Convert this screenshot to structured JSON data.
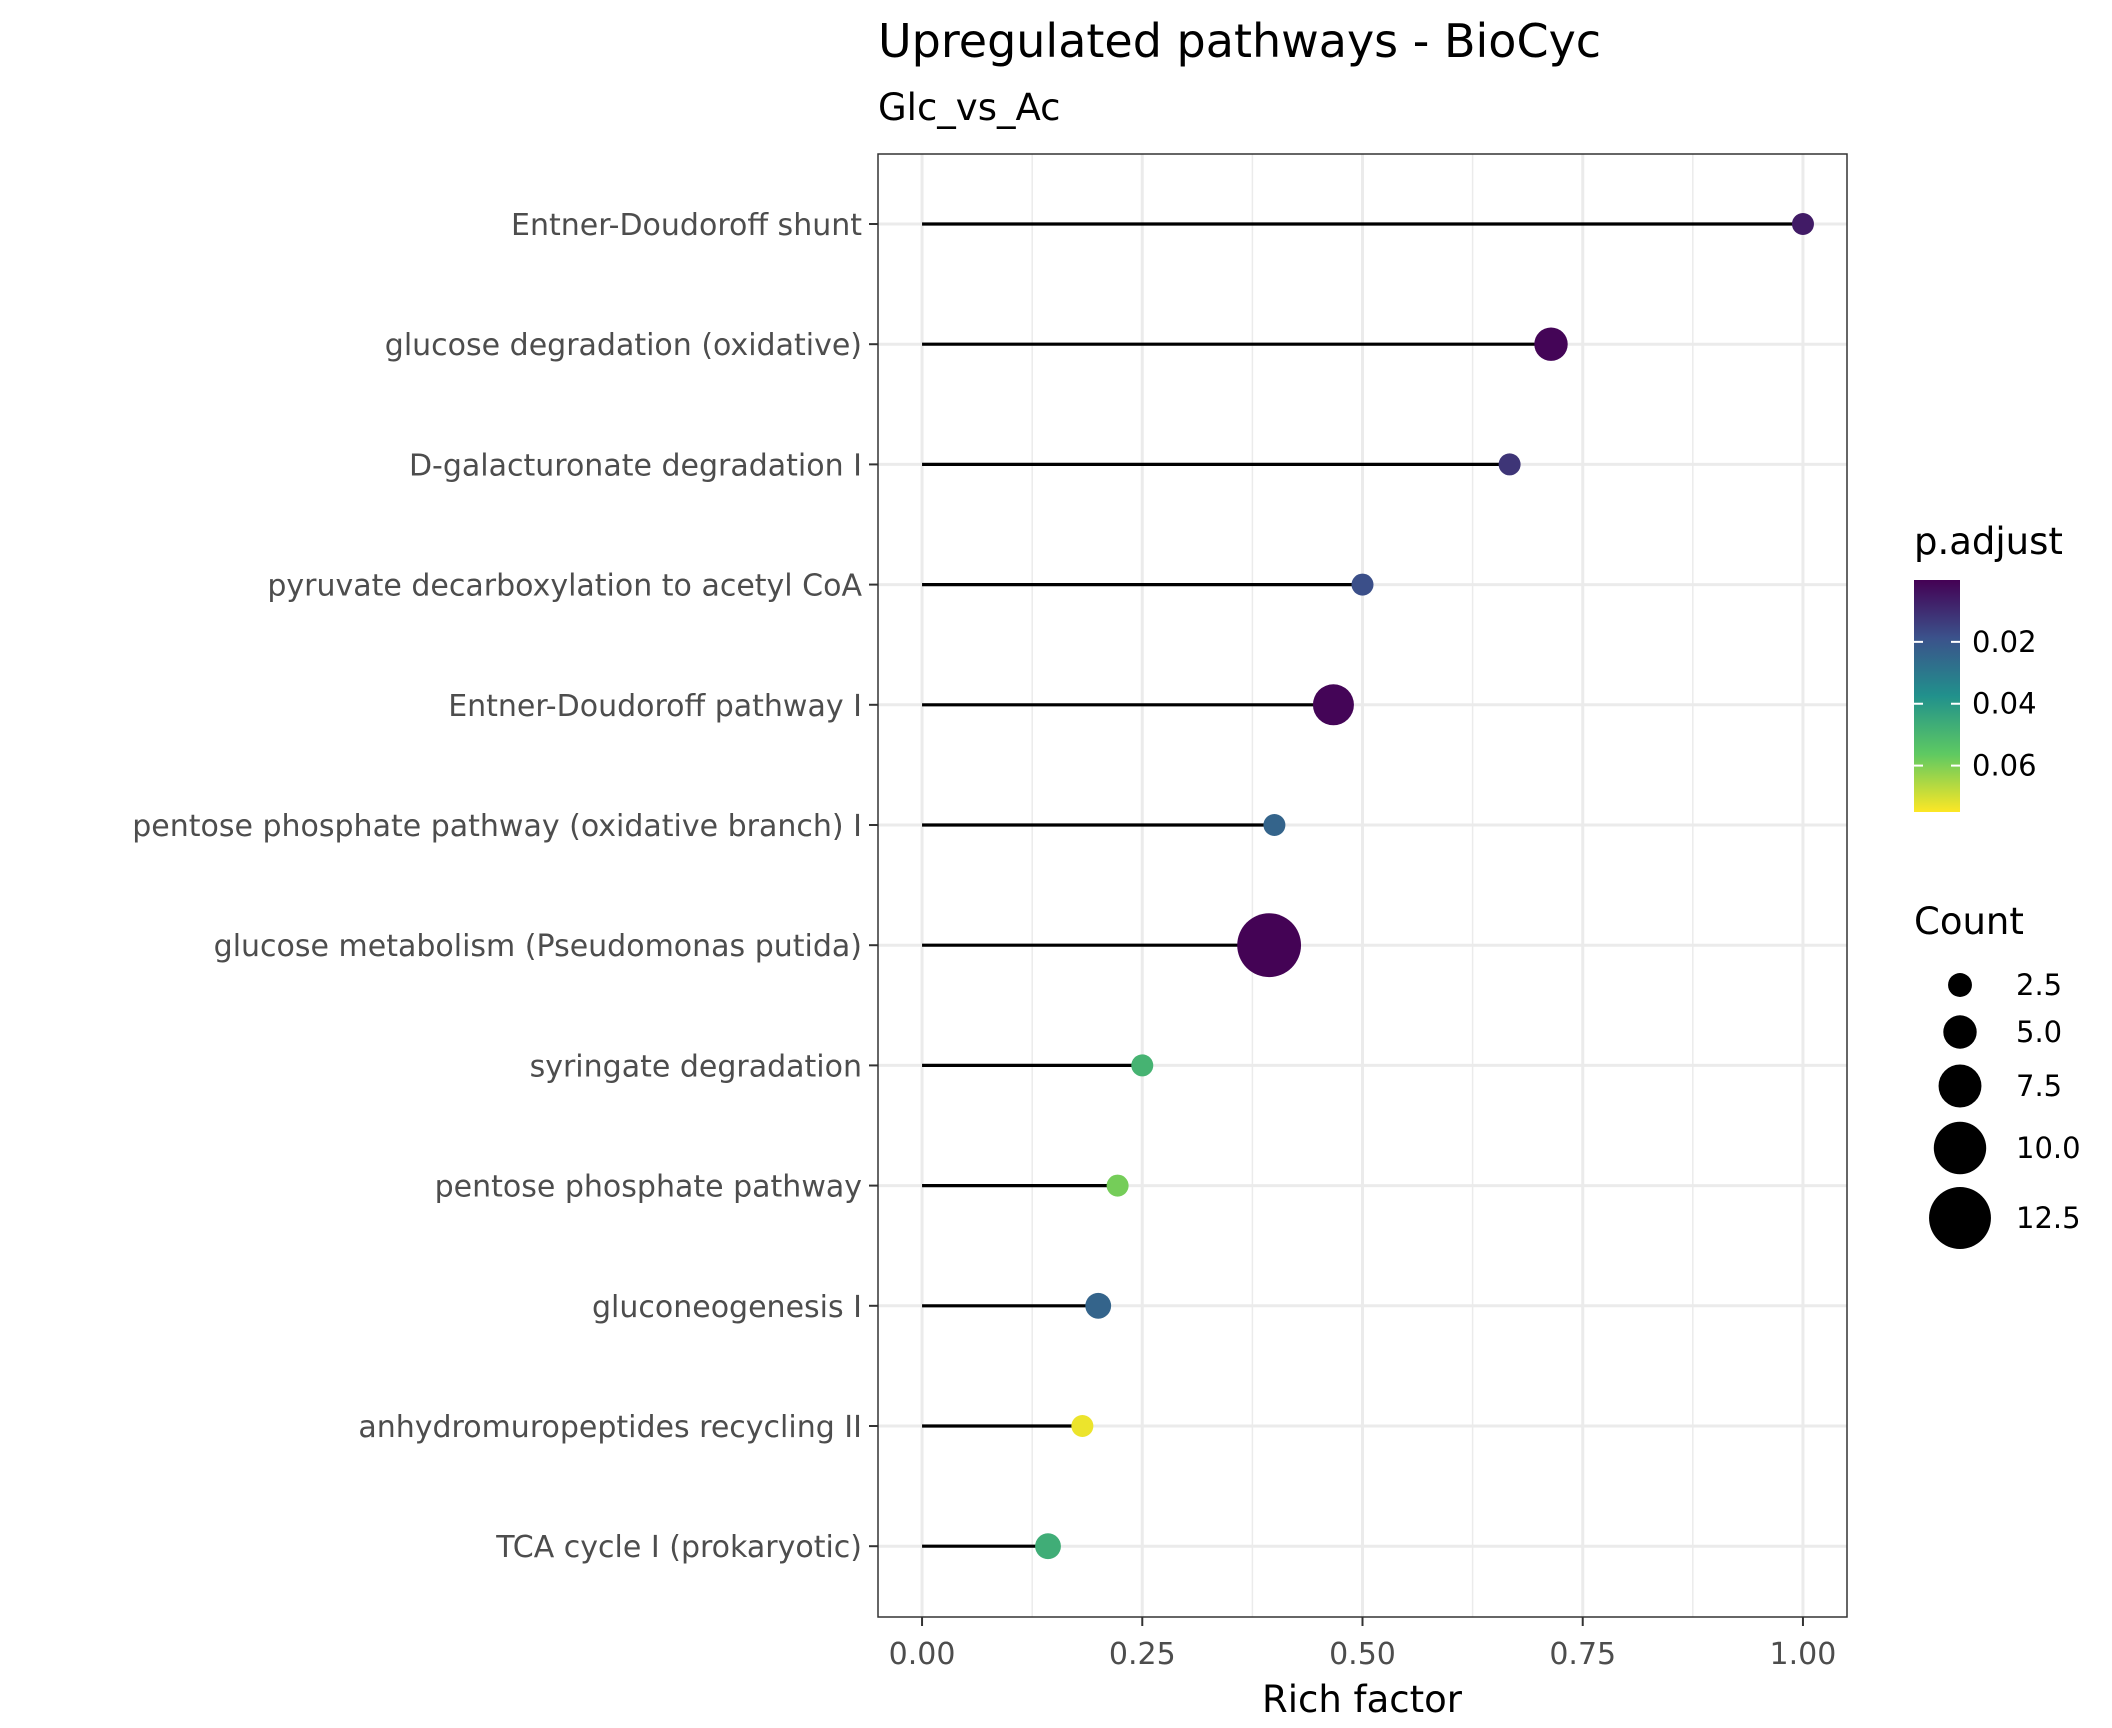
{
  "chart_data": {
    "type": "scatter",
    "title": "Upregulated pathways - BioCyc",
    "subtitle": "Glc_vs_Ac",
    "xlabel": "Rich factor",
    "ylabel": "",
    "xlim": [
      -0.05,
      1.05
    ],
    "x_ticks": [
      "0.00",
      "0.25",
      "0.50",
      "0.75",
      "1.00"
    ],
    "x_tick_values": [
      0,
      0.25,
      0.5,
      0.75,
      1.0
    ],
    "grid": true,
    "categories": [
      "Entner-Doudoroff shunt",
      "glucose degradation (oxidative)",
      "D-galacturonate degradation I",
      "pyruvate decarboxylation to acetyl CoA",
      "Entner-Doudoroff pathway I",
      "pentose phosphate pathway (oxidative branch) I",
      "glucose metabolism (Pseudomonas putida)",
      "syringate degradation",
      "pentose phosphate pathway",
      "gluconeogenesis I",
      "anhydromuropeptides recycling II",
      "TCA cycle I (prokaryotic)"
    ],
    "rich_factor": [
      1.0,
      0.714,
      0.667,
      0.5,
      0.467,
      0.4,
      0.394,
      0.25,
      0.222,
      0.2,
      0.182,
      0.143
    ],
    "count": [
      2,
      5,
      2,
      2,
      7,
      2,
      13,
      2,
      2,
      3,
      2,
      3
    ],
    "p_adjust": [
      0.006,
      0.001,
      0.012,
      0.018,
      0.001,
      0.024,
      0.0005,
      0.049,
      0.059,
      0.024,
      0.073,
      0.047
    ],
    "color_legend": {
      "title": "p.adjust",
      "range": [
        0.0,
        0.075
      ],
      "ticks": [
        0.02,
        0.04,
        0.06
      ],
      "tick_labels": [
        "0.02",
        "0.04",
        "0.06"
      ],
      "colormap": "viridis-reversed",
      "colors": [
        "#440154",
        "#3b528b",
        "#21918c",
        "#5ec962",
        "#fde725"
      ]
    },
    "size_legend": {
      "title": "Count",
      "values": [
        2.5,
        5.0,
        7.5,
        10.0,
        12.5
      ],
      "labels": [
        "2.5",
        "5.0",
        "7.5",
        "10.0",
        "12.5"
      ]
    },
    "legend_position": "right"
  }
}
